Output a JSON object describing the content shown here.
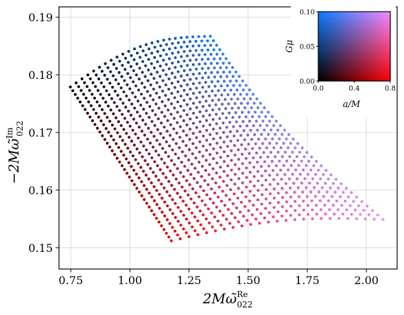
{
  "chart_data": {
    "type": "scatter",
    "title": "",
    "xlabel_parts": {
      "prefix": "2M",
      "omega": "ω̃",
      "sub": "022",
      "sup": "Re"
    },
    "ylabel_parts": {
      "prefix": "−2M",
      "omega": "ω̃",
      "sub": "022",
      "sup": "Im"
    },
    "xlim": [
      0.7,
      2.13
    ],
    "ylim": [
      0.1463,
      0.1918
    ],
    "xticks": [
      0.75,
      1.0,
      1.25,
      1.5,
      1.75,
      2.0
    ],
    "xtick_labels": [
      "0.75",
      "1.00",
      "1.25",
      "1.50",
      "1.75",
      "2.00"
    ],
    "yticks": [
      0.15,
      0.16,
      0.17,
      0.18,
      0.19
    ],
    "ytick_labels": [
      "0.15",
      "0.16",
      "0.17",
      "0.18",
      "0.19"
    ],
    "grid": true,
    "grid_structure": {
      "base_point": [
        0.748,
        0.1779
      ],
      "spin_values_a_over_M": [
        0.0,
        0.8
      ],
      "coupling_values_Gmu": [
        0.0,
        0.1
      ],
      "n_spin": 42,
      "n_coupling": 25,
      "corners": {
        "a0_mu0": [
          0.748,
          0.1779
        ],
        "a08_mu0": [
          1.175,
          0.1512
        ],
        "a0_mu01": [
          1.34,
          0.1867
        ],
        "a08_mu01": [
          2.07,
          0.1549
        ]
      }
    },
    "colorbar_inset": {
      "x_label": "a/M",
      "y_label": "Gμ",
      "xlim": [
        0.0,
        0.8
      ],
      "ylim": [
        0.0,
        0.1
      ],
      "xticks": [
        0.0,
        0.4,
        0.8
      ],
      "xtick_labels": [
        "0.0",
        "0.4",
        "0.8"
      ],
      "yticks": [
        0.0,
        0.05,
        0.1
      ],
      "ytick_labels": [
        "0.00",
        "0.05",
        "0.10"
      ],
      "corner_colors": {
        "a0_mu0": "#000000",
        "a08_mu0": "#ff0000",
        "a0_mu01": "#0a7dff",
        "a08_mu01": "#f28cff"
      }
    }
  }
}
